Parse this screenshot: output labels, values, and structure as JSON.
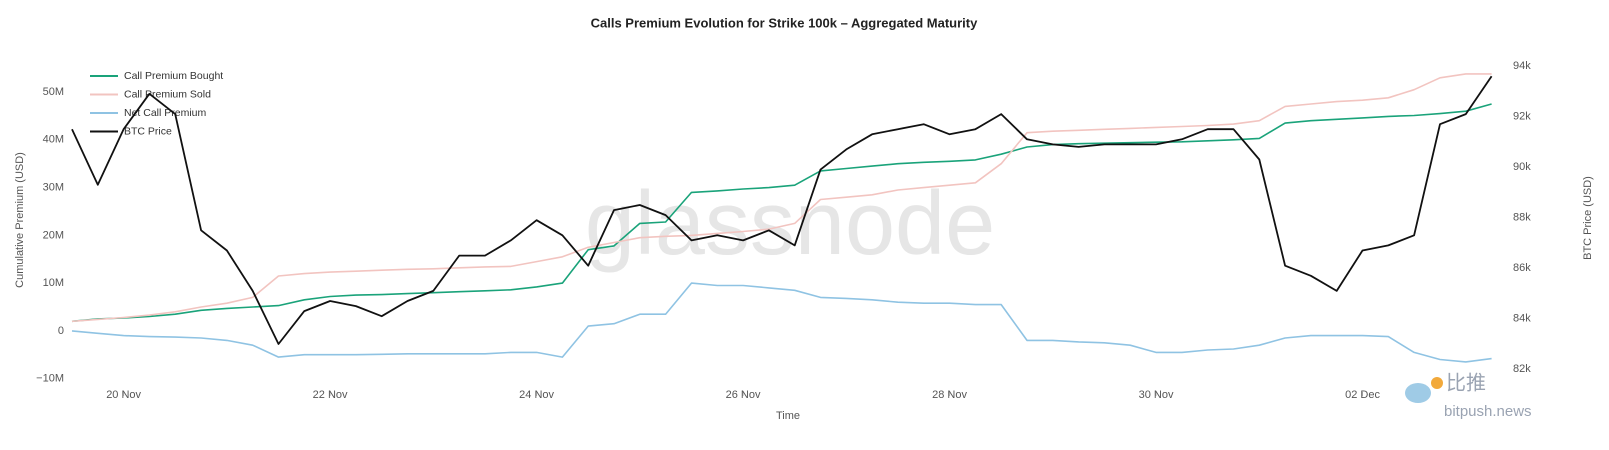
{
  "chart_data": {
    "type": "line",
    "title": "Calls Premium Evolution for Strike 100k – Aggregated Maturity",
    "xlabel": "Time",
    "ylabel": "Cumulative Premium (USD)",
    "y2label": "BTC Price (USD)",
    "watermark": "glassnode",
    "source_logo": "比推",
    "source_site": "bitpush.news",
    "grid": false,
    "legend": "top-left",
    "xlim": [
      19.5,
      33.38
    ],
    "xticks": [
      {
        "value": 20,
        "label": "20 Nov"
      },
      {
        "value": 22,
        "label": "22 Nov"
      },
      {
        "value": 24,
        "label": "24 Nov"
      },
      {
        "value": 26,
        "label": "26 Nov"
      },
      {
        "value": 28,
        "label": "28 Nov"
      },
      {
        "value": 30,
        "label": "30 Nov"
      },
      {
        "value": 32,
        "label": "02 Dec"
      }
    ],
    "ylim": [
      -12800000.0,
      56300000.0
    ],
    "yticks": [
      {
        "value": -10000000.0,
        "label": "−10M"
      },
      0,
      {
        "value": 10000000.0,
        "label": "10M"
      },
      {
        "value": 20000000.0,
        "label": "20M"
      },
      {
        "value": 30000000.0,
        "label": "30M"
      },
      {
        "value": 40000000.0,
        "label": "40M"
      },
      {
        "value": 50000000.0,
        "label": "50M"
      }
    ],
    "y2lim": [
      81100,
      94160
    ],
    "y2ticks": [
      {
        "value": 82000,
        "label": "82k"
      },
      {
        "value": 84000,
        "label": "84k"
      },
      {
        "value": 86000,
        "label": "86k"
      },
      {
        "value": 88000,
        "label": "88k"
      },
      {
        "value": 90000,
        "label": "90k"
      },
      {
        "value": 92000,
        "label": "92k"
      },
      {
        "value": 94000,
        "label": "94k"
      }
    ],
    "x": [
      19.5,
      19.75,
      20,
      20.25,
      20.5,
      20.75,
      21,
      21.25,
      21.5,
      21.75,
      22,
      22.25,
      22.5,
      22.75,
      23,
      23.25,
      23.5,
      23.75,
      24,
      24.25,
      24.5,
      24.75,
      25,
      25.25,
      25.5,
      25.75,
      26,
      26.25,
      26.5,
      26.75,
      27,
      27.25,
      27.5,
      27.75,
      28,
      28.25,
      28.5,
      28.75,
      29,
      29.25,
      29.5,
      29.75,
      30,
      30.25,
      30.5,
      30.75,
      31,
      31.25,
      31.5,
      31.75,
      32,
      32.25,
      32.5,
      32.75,
      33,
      33.25
    ],
    "series": [
      {
        "name": "Call Premium Bought",
        "color": "#1aa37a",
        "axis": "y",
        "values": [
          2000000.0,
          2500000.0,
          2700000.0,
          3000000.0,
          3500000.0,
          4300000.0,
          4700000.0,
          5000000.0,
          5300000.0,
          6500000.0,
          7200000.0,
          7500000.0,
          7600000.0,
          7800000.0,
          8000000.0,
          8200000.0,
          8400000.0,
          8600000.0,
          9200000.0,
          10000000.0,
          17000000.0,
          17800000.0,
          22500000.0,
          22800000.0,
          29000000.0,
          29300000.0,
          29700000.0,
          30000000.0,
          30500000.0,
          33500000.0,
          34000000.0,
          34500000.0,
          35000000.0,
          35300000.0,
          35500000.0,
          35800000.0,
          37000000.0,
          38500000.0,
          39000000.0,
          39200000.0,
          39300000.0,
          39400000.0,
          39500000.0,
          39600000.0,
          39800000.0,
          40000000.0,
          40300000.0,
          43500000.0,
          44000000.0,
          44300000.0,
          44600000.0,
          44900000.0,
          45100000.0,
          45500000.0,
          46000000.0,
          47500000.0
        ]
      },
      {
        "name": "Call Premium Sold",
        "color": "#f2c4c0",
        "axis": "y",
        "values": [
          2000000.0,
          2400000.0,
          2800000.0,
          3300000.0,
          4000000.0,
          5000000.0,
          5800000.0,
          7000000.0,
          11500000.0,
          12000000.0,
          12300000.0,
          12500000.0,
          12700000.0,
          12900000.0,
          13000000.0,
          13200000.0,
          13400000.0,
          13500000.0,
          14500000.0,
          15500000.0,
          17500000.0,
          18500000.0,
          19500000.0,
          19800000.0,
          20000000.0,
          20400000.0,
          20800000.0,
          21300000.0,
          22500000.0,
          27500000.0,
          28000000.0,
          28500000.0,
          29500000.0,
          30000000.0,
          30500000.0,
          31000000.0,
          35000000.0,
          41500000.0,
          41800000.0,
          42000000.0,
          42200000.0,
          42400000.0,
          42600000.0,
          42800000.0,
          43000000.0,
          43300000.0,
          44000000.0,
          47000000.0,
          47500000.0,
          48000000.0,
          48300000.0,
          48800000.0,
          50500000.0,
          53000000.0,
          53800000.0,
          53800000.0
        ]
      },
      {
        "name": "Net Call Premium",
        "color": "#8fc3e3",
        "axis": "y",
        "values": [
          0,
          -500000.0,
          -1000000.0,
          -1200000.0,
          -1300000.0,
          -1500000.0,
          -2000000.0,
          -3000000.0,
          -5500000.0,
          -5000000.0,
          -5000000.0,
          -5000000.0,
          -4900000.0,
          -4800000.0,
          -4800000.0,
          -4800000.0,
          -4800000.0,
          -4500000.0,
          -4500000.0,
          -5500000.0,
          1000000.0,
          1500000.0,
          3500000.0,
          3500000.0,
          10000000.0,
          9500000.0,
          9500000.0,
          9000000.0,
          8500000.0,
          7000000.0,
          6800000.0,
          6500000.0,
          6000000.0,
          5800000.0,
          5800000.0,
          5500000.0,
          5500000.0,
          -2000000.0,
          -2000000.0,
          -2300000.0,
          -2500000.0,
          -3000000.0,
          -4500000.0,
          -4500000.0,
          -4000000.0,
          -3800000.0,
          -3000000.0,
          -1500000.0,
          -1000000.0,
          -1000000.0,
          -1000000.0,
          -1200000.0,
          -4500000.0,
          -6000000.0,
          -6500000.0,
          -5800000.0
        ]
      },
      {
        "name": "BTC Price",
        "color": "#111111",
        "axis": "y2",
        "values": [
          91500,
          89300,
          91500,
          92900,
          92100,
          87500,
          86700,
          85100,
          83000,
          84300,
          84700,
          84500,
          84100,
          84700,
          85100,
          86500,
          86500,
          87100,
          87900,
          87300,
          86100,
          88300,
          88500,
          88100,
          87100,
          87300,
          87100,
          87500,
          86900,
          89900,
          90700,
          91300,
          91500,
          91700,
          91300,
          91500,
          92100,
          91100,
          90900,
          90800,
          90900,
          90900,
          90900,
          91100,
          91500,
          91500,
          90300,
          86100,
          85700,
          85100,
          86700,
          86900,
          87300,
          91700,
          92100,
          93600
        ]
      }
    ]
  }
}
